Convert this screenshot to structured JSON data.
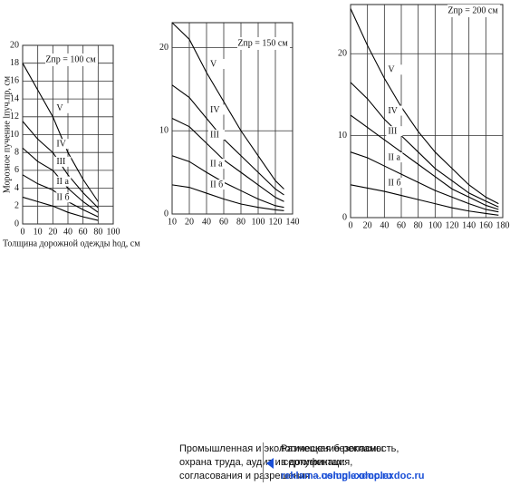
{
  "chart_data": [
    {
      "type": "line",
      "annotation": "Zпр = 100 см",
      "y_label": "Морозное пучение lпуч.пр, см",
      "x_label": "Толщина дорожной одежды hод, см",
      "x": [
        0,
        10,
        20,
        40,
        60,
        80
      ],
      "series": [
        {
          "name": "V",
          "color": "#000",
          "values": [
            18,
            15,
            12,
            8,
            5,
            2.5
          ]
        },
        {
          "name": "IV",
          "color": "#000",
          "values": [
            11.5,
            9.5,
            8,
            5.5,
            3.5,
            1.8
          ]
        },
        {
          "name": "III",
          "color": "#000",
          "values": [
            8.5,
            7,
            6,
            4,
            2.5,
            1.3
          ]
        },
        {
          "name": "II а",
          "color": "#000",
          "values": [
            5.5,
            4.5,
            3.8,
            2.5,
            1.6,
            0.8
          ]
        },
        {
          "name": "II б",
          "color": "#000",
          "values": [
            3,
            2.5,
            2,
            1.3,
            0.8,
            0.4
          ]
        }
      ],
      "xlim": [
        0,
        100
      ],
      "xticks": [
        0,
        10,
        20,
        40,
        60,
        80,
        100
      ],
      "ylim": [
        0,
        20
      ],
      "yticks": [
        0,
        2,
        4,
        6,
        8,
        10,
        12,
        14,
        16,
        18,
        20
      ],
      "grid": true
    },
    {
      "type": "line",
      "annotation": "Zпр = 150 см",
      "x": [
        10,
        20,
        40,
        60,
        80,
        100,
        120,
        130
      ],
      "series": [
        {
          "name": "V",
          "color": "#000",
          "values": [
            23,
            21,
            17,
            13.5,
            10,
            7,
            4,
            3
          ]
        },
        {
          "name": "IV",
          "color": "#000",
          "values": [
            15.5,
            14,
            11.5,
            9,
            7,
            5,
            3,
            2.3
          ]
        },
        {
          "name": "III",
          "color": "#000",
          "values": [
            11.5,
            10.5,
            8.5,
            6.5,
            5,
            3.5,
            2,
            1.5
          ]
        },
        {
          "name": "II а",
          "color": "#000",
          "values": [
            7,
            6.3,
            5,
            3.8,
            2.8,
            1.8,
            1,
            0.8
          ]
        },
        {
          "name": "II б",
          "color": "#000",
          "values": [
            3.5,
            3.2,
            2.5,
            1.8,
            1.2,
            0.8,
            0.5,
            0.4
          ]
        }
      ],
      "xlim": [
        10,
        140
      ],
      "xticks": [
        10,
        20,
        40,
        60,
        80,
        100,
        120,
        140
      ],
      "ylim": [
        0,
        23
      ],
      "yticks": [
        0,
        10,
        20
      ],
      "grid": true
    },
    {
      "type": "line",
      "annotation": "Zпр = 200 см",
      "x": [
        0,
        20,
        40,
        60,
        80,
        100,
        120,
        140,
        160,
        175
      ],
      "series": [
        {
          "name": "V",
          "color": "#000",
          "values": [
            25.5,
            21,
            17,
            13.5,
            10.5,
            8,
            6,
            4,
            2.5,
            1.7
          ]
        },
        {
          "name": "IV",
          "color": "#000",
          "values": [
            16.5,
            14.5,
            12,
            10,
            8,
            6,
            4.5,
            3,
            2,
            1.3
          ]
        },
        {
          "name": "III",
          "color": "#000",
          "values": [
            12.5,
            11,
            9.5,
            8,
            6.5,
            5,
            3.5,
            2.5,
            1.5,
            1
          ]
        },
        {
          "name": "II а",
          "color": "#000",
          "values": [
            8,
            7.3,
            6.3,
            5.3,
            4.3,
            3.3,
            2.5,
            1.7,
            1,
            0.7
          ]
        },
        {
          "name": "II б",
          "color": "#000",
          "values": [
            4,
            3.6,
            3.2,
            2.7,
            2.2,
            1.7,
            1.2,
            0.8,
            0.5,
            0.3
          ]
        }
      ],
      "xlim": [
        0,
        180
      ],
      "xticks": [
        0,
        20,
        40,
        60,
        80,
        100,
        120,
        140,
        160,
        180
      ],
      "ylim": [
        0,
        26
      ],
      "yticks": [
        0,
        10,
        20
      ],
      "grid": true
    }
  ],
  "footer": {
    "left_lines": [
      "Промышленная и экологическая безопасность,",
      "охрана труда, аудит и сертификация,",
      "согласования и разрешения –"
    ],
    "left_link": "uslugi.complexdoc.ru",
    "right_lines": [
      "Размещение рекламы",
      "в документах:"
    ],
    "right_link": "reklama.complexdoc.ru"
  }
}
